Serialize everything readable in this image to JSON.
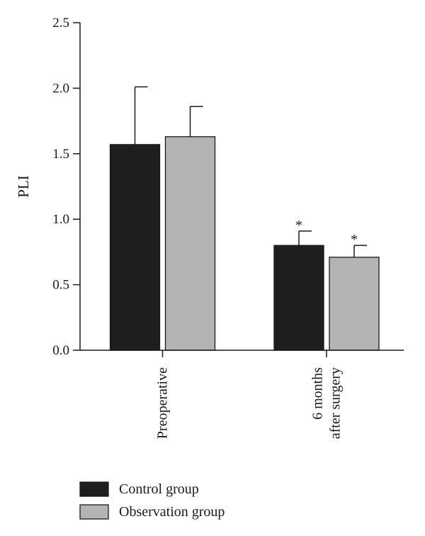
{
  "chart_data": {
    "type": "bar",
    "title": "",
    "xlabel": "",
    "ylabel": "PLI",
    "ylim": [
      0,
      2.5
    ],
    "yticks": [
      "0.0",
      "0.5",
      "1.0",
      "1.5",
      "2.0",
      "2.5"
    ],
    "categories": [
      [
        "Preoperative"
      ],
      [
        "6 months",
        "after surgery"
      ]
    ],
    "series": [
      {
        "name": "Control group",
        "color": "#1e1e1e",
        "values": [
          1.57,
          0.8
        ],
        "errors": [
          0.44,
          0.11
        ]
      },
      {
        "name": "Observation group",
        "color": "#b4b4b4",
        "values": [
          1.63,
          0.71
        ],
        "errors": [
          0.23,
          0.09
        ]
      }
    ],
    "annotations": [
      {
        "category": 1,
        "series": 0,
        "text": "*"
      },
      {
        "category": 1,
        "series": 1,
        "text": "*"
      }
    ],
    "grid": false,
    "legend_position": "bottom-left"
  }
}
